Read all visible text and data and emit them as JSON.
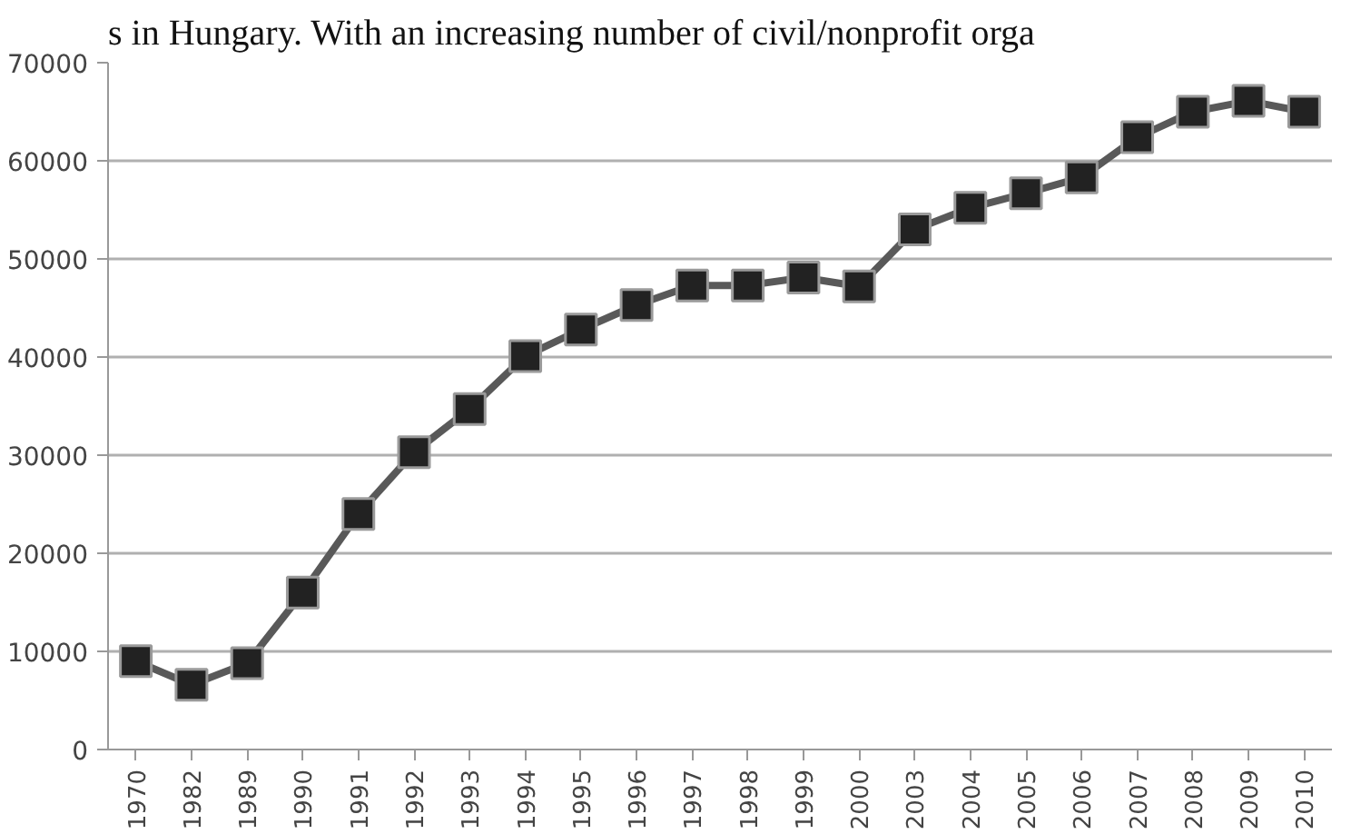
{
  "chart_data": {
    "type": "line",
    "title": "s in Hungary. With an increasing number of civil/nonprofit orga",
    "categories": [
      "1970",
      "1982",
      "1989",
      "1990",
      "1991",
      "1992",
      "1993",
      "1994",
      "1995",
      "1996",
      "1997",
      "1998",
      "1999",
      "2000",
      "2003",
      "2004",
      "2005",
      "2006",
      "2007",
      "2008",
      "2009",
      "2010"
    ],
    "series": [
      {
        "color": "#595959",
        "values": [
          9000,
          6600,
          8800,
          16000,
          24000,
          30300,
          34700,
          40100,
          42800,
          45300,
          47300,
          47300,
          48100,
          47200,
          53000,
          55200,
          56700,
          58300,
          62400,
          65000,
          66100,
          65000
        ]
      }
    ],
    "ylim": [
      0,
      70000
    ],
    "yticks": [
      0,
      10000,
      20000,
      30000,
      40000,
      50000,
      60000,
      70000
    ],
    "grid": "y",
    "marker": "square",
    "line_style": "solid"
  }
}
